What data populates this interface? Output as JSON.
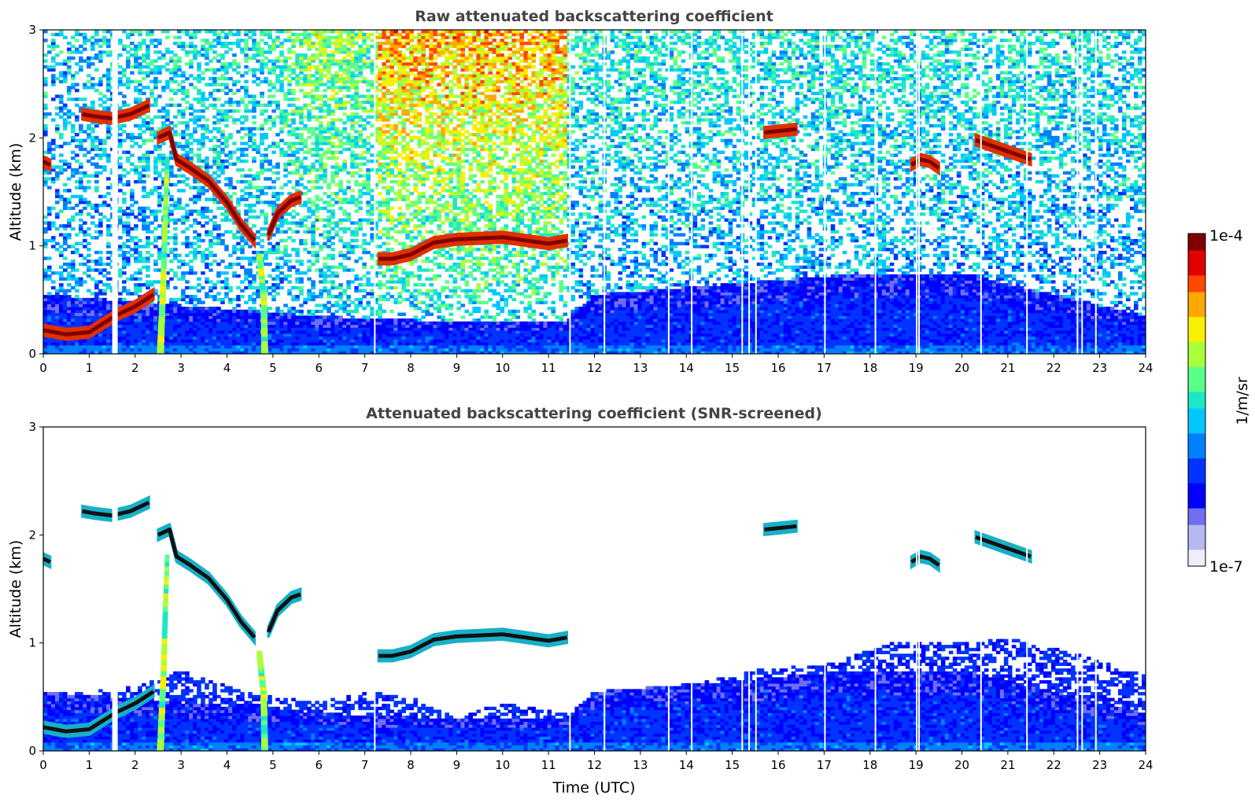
{
  "colors": {
    "colormap": [
      "#eeeef8",
      "#b8b8f0",
      "#6f6ff0",
      "#0000ff",
      "#0033ff",
      "#0080ff",
      "#00c8ff",
      "#1ee6c8",
      "#5aff8a",
      "#aaff3c",
      "#f8f000",
      "#ffa800",
      "#ff4800",
      "#e00000",
      "#800000"
    ],
    "screened_core": "#111111",
    "frame": "#000000"
  },
  "chart_data": [
    {
      "type": "heatmap",
      "title": "Raw attenuated backscattering coefficient",
      "xlabel": "",
      "ylabel": "Altitude (km)",
      "xlim": [
        0,
        24
      ],
      "ylim": [
        0,
        3
      ],
      "x_ticks": [
        "0",
        "1",
        "2",
        "3",
        "4",
        "5",
        "6",
        "7",
        "8",
        "9",
        "10",
        "11",
        "12",
        "13",
        "14",
        "15",
        "16",
        "17",
        "18",
        "19",
        "20",
        "21",
        "22",
        "23",
        "24"
      ],
      "y_ticks": [
        "0",
        "1",
        "2",
        "3"
      ],
      "features": {
        "boundary_layer_top_km": [
          [
            0,
            0.55
          ],
          [
            3,
            0.45
          ],
          [
            6,
            0.35
          ],
          [
            9,
            0.3
          ],
          [
            11.4,
            0.3
          ],
          [
            12,
            0.55
          ],
          [
            18,
            0.75
          ],
          [
            20,
            0.75
          ],
          [
            24,
            0.35
          ]
        ],
        "noise_level_day_fraction": [
          [
            0,
            0.2
          ],
          [
            5,
            0.35
          ],
          [
            6,
            0.65
          ],
          [
            7.2,
            0.5
          ],
          [
            7.3,
            0.95
          ],
          [
            11.4,
            0.95
          ],
          [
            11.45,
            0.35
          ],
          [
            24,
            0.3
          ]
        ],
        "cloud_layers": [
          {
            "x": [
              7.3,
              7.6,
              8.0,
              8.5,
              9.0,
              9.5,
              10.0,
              10.5,
              11.0,
              11.4
            ],
            "y": [
              0.88,
              0.88,
              0.92,
              1.03,
              1.06,
              1.07,
              1.08,
              1.05,
              1.02,
              1.05
            ]
          },
          {
            "x": [
              0.0,
              0.5,
              1.0,
              1.3,
              1.6,
              2.0,
              2.4
            ],
            "y": [
              0.22,
              0.18,
              0.2,
              0.28,
              0.36,
              0.44,
              0.55
            ]
          },
          {
            "x": [
              0.85,
              1.1,
              1.5,
              1.9,
              2.3
            ],
            "y": [
              2.22,
              2.2,
              2.18,
              2.22,
              2.3
            ]
          },
          {
            "x": [
              2.5,
              2.75,
              2.9,
              3.2,
              3.6,
              4.0,
              4.3,
              4.6
            ],
            "y": [
              2.0,
              2.05,
              1.8,
              1.72,
              1.6,
              1.4,
              1.2,
              1.05
            ]
          },
          {
            "x": [
              4.9,
              5.1,
              5.4,
              5.6
            ],
            "y": [
              1.1,
              1.3,
              1.42,
              1.45
            ]
          },
          {
            "x": [
              0.0,
              0.15
            ],
            "y": [
              1.78,
              1.75
            ]
          },
          {
            "x": [
              15.7,
              16.4
            ],
            "y": [
              2.05,
              2.08
            ]
          },
          {
            "x": [
              18.9,
              19.1,
              19.3,
              19.5
            ],
            "y": [
              1.75,
              1.8,
              1.78,
              1.72
            ]
          },
          {
            "x": [
              20.3,
              21.5
            ],
            "y": [
              1.98,
              1.8
            ]
          }
        ],
        "aerosol_plumes": [
          {
            "x": [
              2.55,
              2.62,
              2.66,
              2.7
            ],
            "y": [
              0.0,
              0.7,
              1.3,
              1.8
            ]
          },
          {
            "x": [
              4.82,
              4.8,
              4.7
            ],
            "y": [
              0.0,
              0.5,
              0.9
            ]
          }
        ],
        "data_gaps_hours": [
          1.5,
          1.56,
          7.2,
          11.45,
          12.2,
          13.6,
          14.1,
          15.2,
          15.35,
          15.5,
          17.0,
          18.1,
          19.0,
          19.05,
          20.4,
          21.4,
          22.5,
          22.6,
          22.9
        ]
      }
    },
    {
      "type": "heatmap",
      "title": "Attenuated backscattering coefficient (SNR-screened)",
      "xlabel": "Time (UTC)",
      "ylabel": "Altitude (km)",
      "xlim": [
        0,
        24
      ],
      "ylim": [
        0,
        3
      ],
      "x_ticks": [
        "0",
        "1",
        "2",
        "3",
        "4",
        "5",
        "6",
        "7",
        "8",
        "9",
        "10",
        "11",
        "12",
        "13",
        "14",
        "15",
        "16",
        "17",
        "18",
        "19",
        "20",
        "21",
        "22",
        "23",
        "24"
      ],
      "y_ticks": [
        "0",
        "1",
        "2",
        "3"
      ],
      "features": {
        "screened_top_km": [
          [
            0,
            0.5
          ],
          [
            2,
            0.6
          ],
          [
            3,
            0.75
          ],
          [
            4,
            0.6
          ],
          [
            5,
            0.5
          ],
          [
            6,
            0.45
          ],
          [
            7,
            0.55
          ],
          [
            8,
            0.5
          ],
          [
            9,
            0.3
          ],
          [
            10,
            0.45
          ],
          [
            11.4,
            0.35
          ],
          [
            12,
            0.5
          ],
          [
            14,
            0.6
          ],
          [
            15.5,
            0.75
          ],
          [
            17,
            0.8
          ],
          [
            18.5,
            1.0
          ],
          [
            20,
            1.0
          ],
          [
            21,
            1.05
          ],
          [
            22.5,
            0.9
          ],
          [
            24,
            0.7
          ]
        ]
      }
    },
    {
      "type": "colorbar",
      "label": "1/m/sr",
      "scale": "log",
      "min_label": "1e-7",
      "max_label": "1e-4"
    }
  ]
}
